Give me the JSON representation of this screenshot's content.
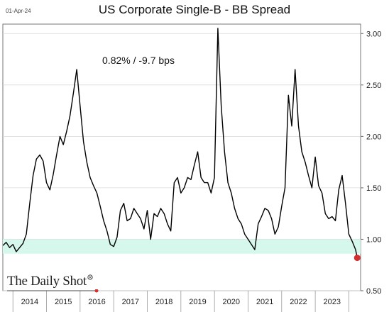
{
  "header": {
    "date": "01-Apr-24",
    "title": "US Corporate Single-B - BB Spread"
  },
  "annotation": "0.82%  /  -9.7 bps",
  "brand": "The Daily Shot",
  "colors": {
    "line": "#000000",
    "highlight_band": "#d5f7ec",
    "last_point": "#d32f2f",
    "grid": "#d9d9d9",
    "axis": "#666666"
  },
  "chart_data": {
    "type": "line",
    "title": "US Corporate Single-B - BB Spread",
    "xlabel": "",
    "ylabel": "",
    "x_ticks": [
      "2014",
      "2015",
      "2016",
      "2017",
      "2018",
      "2019",
      "2020",
      "2021",
      "2022",
      "2023"
    ],
    "y_ticks": [
      "0.50",
      "1.00",
      "1.50",
      "2.00",
      "2.50",
      "3.00"
    ],
    "xlim": [
      2013.7,
      2024.35
    ],
    "ylim": [
      0.5,
      3.05
    ],
    "y_axis_side": "right",
    "grid": "horizontal",
    "highlight_band": [
      0.86,
      1.0
    ],
    "last_value": 0.82,
    "series": [
      {
        "x": [
          2013.7,
          2013.8,
          2013.9,
          2014.0,
          2014.1,
          2014.2,
          2014.3,
          2014.4,
          2014.5,
          2014.6,
          2014.7,
          2014.8,
          2014.9,
          2015.0,
          2015.1,
          2015.2,
          2015.3,
          2015.4,
          2015.5,
          2015.6,
          2015.7,
          2015.8,
          2015.9,
          2016.0,
          2016.1,
          2016.2,
          2016.3,
          2016.4,
          2016.5,
          2016.6,
          2016.7,
          2016.8,
          2016.9,
          2017.0,
          2017.1,
          2017.2,
          2017.3,
          2017.4,
          2017.5,
          2017.6,
          2017.7,
          2017.8,
          2017.9,
          2018.0,
          2018.1,
          2018.2,
          2018.3,
          2018.4,
          2018.5,
          2018.6,
          2018.7,
          2018.8,
          2018.9,
          2019.0,
          2019.1,
          2019.2,
          2019.3,
          2019.4,
          2019.5,
          2019.6,
          2019.7,
          2019.8,
          2019.9,
          2020.0,
          2020.1,
          2020.2,
          2020.3,
          2020.4,
          2020.5,
          2020.6,
          2020.7,
          2020.8,
          2020.9,
          2021.0,
          2021.1,
          2021.2,
          2021.3,
          2021.4,
          2021.5,
          2021.6,
          2021.7,
          2021.8,
          2021.9,
          2022.0,
          2022.1,
          2022.2,
          2022.3,
          2022.4,
          2022.5,
          2022.6,
          2022.7,
          2022.8,
          2022.9,
          2023.0,
          2023.1,
          2023.2,
          2023.3,
          2023.4,
          2023.5,
          2023.6,
          2023.7,
          2023.8,
          2023.9,
          2024.0,
          2024.1,
          2024.2,
          2024.25
        ],
        "values": [
          0.94,
          0.97,
          0.92,
          0.95,
          0.88,
          0.92,
          0.96,
          1.05,
          1.35,
          1.62,
          1.78,
          1.82,
          1.76,
          1.55,
          1.48,
          1.63,
          1.82,
          2.0,
          1.92,
          2.05,
          2.2,
          2.42,
          2.65,
          2.3,
          1.95,
          1.75,
          1.6,
          1.52,
          1.45,
          1.32,
          1.18,
          1.08,
          0.95,
          0.93,
          1.02,
          1.28,
          1.35,
          1.18,
          1.2,
          1.3,
          1.25,
          1.2,
          1.1,
          1.28,
          1.0,
          1.25,
          1.22,
          1.3,
          1.25,
          1.15,
          1.08,
          1.55,
          1.6,
          1.45,
          1.5,
          1.6,
          1.58,
          1.72,
          1.85,
          1.6,
          1.55,
          1.55,
          1.45,
          1.6,
          3.05,
          2.3,
          1.85,
          1.55,
          1.45,
          1.3,
          1.2,
          1.15,
          1.05,
          1.0,
          0.95,
          0.9,
          1.15,
          1.22,
          1.3,
          1.28,
          1.2,
          1.05,
          1.12,
          1.32,
          1.5,
          2.4,
          2.1,
          2.65,
          2.1,
          1.85,
          1.75,
          1.62,
          1.5,
          1.8,
          1.52,
          1.45,
          1.25,
          1.2,
          1.22,
          1.18,
          1.48,
          1.62,
          1.35,
          1.05,
          0.98,
          0.9,
          0.82
        ]
      }
    ]
  }
}
